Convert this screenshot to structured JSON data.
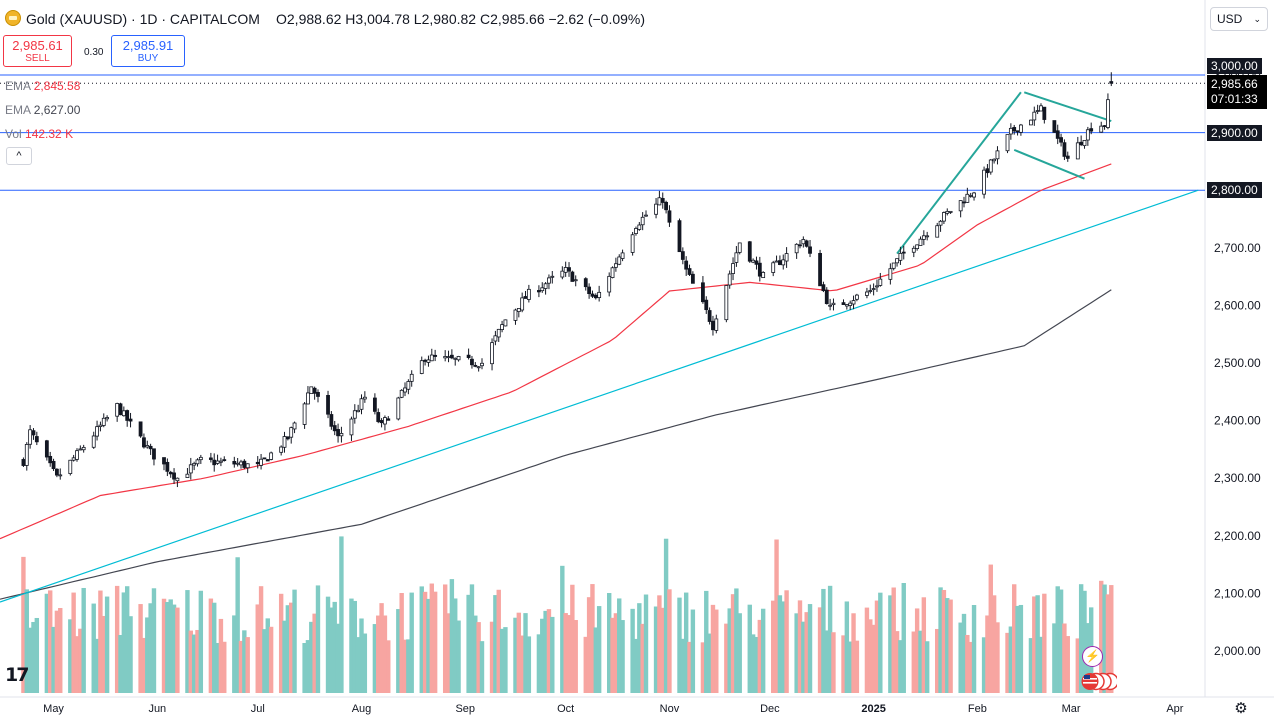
{
  "header": {
    "symbol_title": "Gold (XAUUSD) · 1D · CAPITALCOM",
    "ohlc": [
      {
        "label": "O",
        "value": "2,988.62"
      },
      {
        "label": "H",
        "value": "3,004.78"
      },
      {
        "label": "L",
        "value": "2,980.82"
      },
      {
        "label": "C",
        "value": "2,985.66"
      }
    ],
    "change": "−2.62 (−0.09%)",
    "currency": "USD"
  },
  "trade": {
    "sell_price": "2,985.61",
    "sell_label": "SELL",
    "spread": "0.30",
    "buy_price": "2,985.91",
    "buy_label": "BUY"
  },
  "indicators": [
    {
      "name": "EMA",
      "value": "2,845.58",
      "color": "#f23645"
    },
    {
      "name": "EMA",
      "value": "2,627.00",
      "color": "#434651"
    },
    {
      "name": "Vol",
      "value": "142.32 K",
      "color": "#f23645"
    }
  ],
  "collapse_glyph": "^",
  "price_tags": {
    "last_price": "2,985.66",
    "countdown": "07:01:33",
    "levels": [
      "3,000.00",
      "2,900.00",
      "2,800.00"
    ]
  },
  "colors": {
    "up": "#26a69a",
    "down": "#ef5350",
    "ema50": "#f23645",
    "ema200": "#434651",
    "trendline": "#00bcd4",
    "channel": "#26a69a",
    "hline": "#2962ff",
    "vol_up": "#80cbc4",
    "vol_down": "#f7a5a1"
  },
  "icons": [
    "tradingview-logo-icon",
    "flash-icon",
    "flags-icon",
    "settings-icon",
    "chevron-down-icon"
  ],
  "logo_text": "17",
  "flash_glyph": "⚡",
  "settings_glyph": "⚙",
  "chevron_glyph": "⌄",
  "chart_data": {
    "type": "candlestick",
    "timeframe": "1D",
    "y_ticks": [
      2000,
      2100,
      2200,
      2300,
      2400,
      2500,
      2600,
      2700,
      2800,
      2900,
      3000
    ],
    "y_tick_labels": [
      "2,000.00",
      "2,100.00",
      "2,200.00",
      "2,300.00",
      "2,400.00",
      "2,500.00",
      "2,600.00",
      "2,700.00",
      "2,800.00",
      "2,900.00",
      "3,000.00"
    ],
    "ylim": [
      1930,
      3030
    ],
    "x_ticks": [
      "May",
      "Jun",
      "Jul",
      "Aug",
      "Sep",
      "Oct",
      "Nov",
      "Dec",
      "2025",
      "Feb",
      "Mar",
      "Apr"
    ],
    "horizontal_levels": [
      3000,
      2900,
      2800
    ],
    "last_price": 2985.66,
    "price_anchors": [
      [
        "2024-04-22",
        2330
      ],
      [
        "2024-04-24",
        2380
      ],
      [
        "2024-05-02",
        2300
      ],
      [
        "2024-05-10",
        2355
      ],
      [
        "2024-05-20",
        2425
      ],
      [
        "2024-05-30",
        2345
      ],
      [
        "2024-06-07",
        2300
      ],
      [
        "2024-06-14",
        2330
      ],
      [
        "2024-06-25",
        2325
      ],
      [
        "2024-07-01",
        2320
      ],
      [
        "2024-07-10",
        2370
      ],
      [
        "2024-07-17",
        2460
      ],
      [
        "2024-07-25",
        2370
      ],
      [
        "2024-08-02",
        2440
      ],
      [
        "2024-08-07",
        2390
      ],
      [
        "2024-08-20",
        2510
      ],
      [
        "2024-09-06",
        2500
      ],
      [
        "2024-09-13",
        2575
      ],
      [
        "2024-09-20",
        2620
      ],
      [
        "2024-10-01",
        2660
      ],
      [
        "2024-10-10",
        2610
      ],
      [
        "2024-10-22",
        2740
      ],
      [
        "2024-10-30",
        2785
      ],
      [
        "2024-11-01",
        2740
      ],
      [
        "2024-11-06",
        2660
      ],
      [
        "2024-11-14",
        2565
      ],
      [
        "2024-11-22",
        2710
      ],
      [
        "2024-11-29",
        2650
      ],
      [
        "2024-12-11",
        2715
      ],
      [
        "2024-12-19",
        2595
      ],
      [
        "2024-12-31",
        2625
      ],
      [
        "2025-01-10",
        2690
      ],
      [
        "2025-01-22",
        2755
      ],
      [
        "2025-01-31",
        2800
      ],
      [
        "2025-02-11",
        2900
      ],
      [
        "2025-02-20",
        2940
      ],
      [
        "2025-02-28",
        2855
      ],
      [
        "2025-03-07",
        2910
      ],
      [
        "2025-03-11",
        2915
      ],
      [
        "2025-03-13",
        2985.66
      ]
    ],
    "ema_long_anchors": [
      [
        "2024-04-15",
        2090
      ],
      [
        "2024-06-01",
        2155
      ],
      [
        "2024-08-01",
        2220
      ],
      [
        "2024-10-01",
        2340
      ],
      [
        "2024-11-15",
        2410
      ],
      [
        "2025-01-01",
        2470
      ],
      [
        "2025-02-15",
        2530
      ],
      [
        "2025-03-13",
        2627
      ]
    ],
    "ema_short_anchors": [
      [
        "2024-04-15",
        2195
      ],
      [
        "2024-05-15",
        2270
      ],
      [
        "2024-06-15",
        2300
      ],
      [
        "2024-07-15",
        2340
      ],
      [
        "2024-08-15",
        2390
      ],
      [
        "2024-09-15",
        2450
      ],
      [
        "2024-10-15",
        2540
      ],
      [
        "2024-11-01",
        2625
      ],
      [
        "2024-11-25",
        2640
      ],
      [
        "2024-12-20",
        2625
      ],
      [
        "2025-01-15",
        2670
      ],
      [
        "2025-02-01",
        2740
      ],
      [
        "2025-02-20",
        2800
      ],
      [
        "2025-03-13",
        2845.58
      ]
    ],
    "trendline": [
      [
        "2024-04-15",
        2085
      ],
      [
        "2025-04-08",
        2800
      ]
    ],
    "channel_lines": [
      [
        [
          "2025-01-08",
          2690
        ],
        [
          "2025-02-14",
          2970
        ]
      ],
      [
        [
          "2025-02-15",
          2970
        ],
        [
          "2025-03-13",
          2920
        ]
      ],
      [
        [
          "2025-02-12",
          2870
        ],
        [
          "2025-03-05",
          2820
        ]
      ]
    ],
    "volume_last": "142.32 K"
  }
}
